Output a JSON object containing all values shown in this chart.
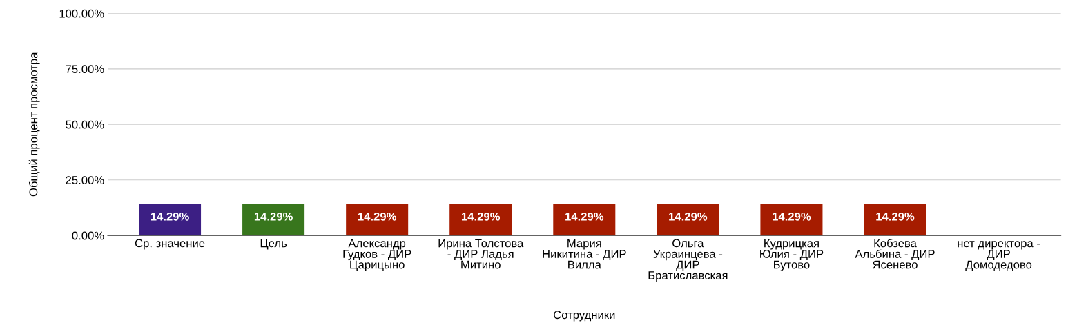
{
  "chart_data": {
    "type": "bar",
    "xlabel": "Сотрудники",
    "ylabel": "Общий процент просмотра",
    "categories": [
      "Ср. значение",
      "Цель",
      "Александр\nГудков - ДИР\nЦарицыно",
      "Ирина Толстова\n- ДИР Ладья\nМитино",
      "Мария\nНикитина - ДИР\nВилла",
      "Ольга\nУкраинцева -\nДИР\nБратиславская",
      "Кудрицкая\nЮлия - ДИР\nБутово",
      "Кобзева\nАльбина - ДИР\nЯсенево",
      "нет директора -\nДИР\nДомодедово"
    ],
    "values": [
      14.29,
      14.29,
      14.29,
      14.29,
      14.29,
      14.29,
      14.29,
      14.29,
      null
    ],
    "value_labels": [
      "14.29%",
      "14.29%",
      "14.29%",
      "14.29%",
      "14.29%",
      "14.29%",
      "14.29%",
      "14.29%",
      null
    ],
    "colors": [
      "#3c1f84",
      "#38761d",
      "#a61c00",
      "#a61c00",
      "#a61c00",
      "#a61c00",
      "#a61c00",
      "#a61c00",
      "#a61c00"
    ],
    "ylim": [
      0,
      100
    ],
    "yticks": [
      {
        "value": 0,
        "label": "0.00%"
      },
      {
        "value": 25,
        "label": "25.00%"
      },
      {
        "value": 50,
        "label": "50.00%"
      },
      {
        "value": 75,
        "label": "75.00%"
      },
      {
        "value": 100,
        "label": "100.00%"
      }
    ],
    "grid": "y",
    "legend": false
  }
}
